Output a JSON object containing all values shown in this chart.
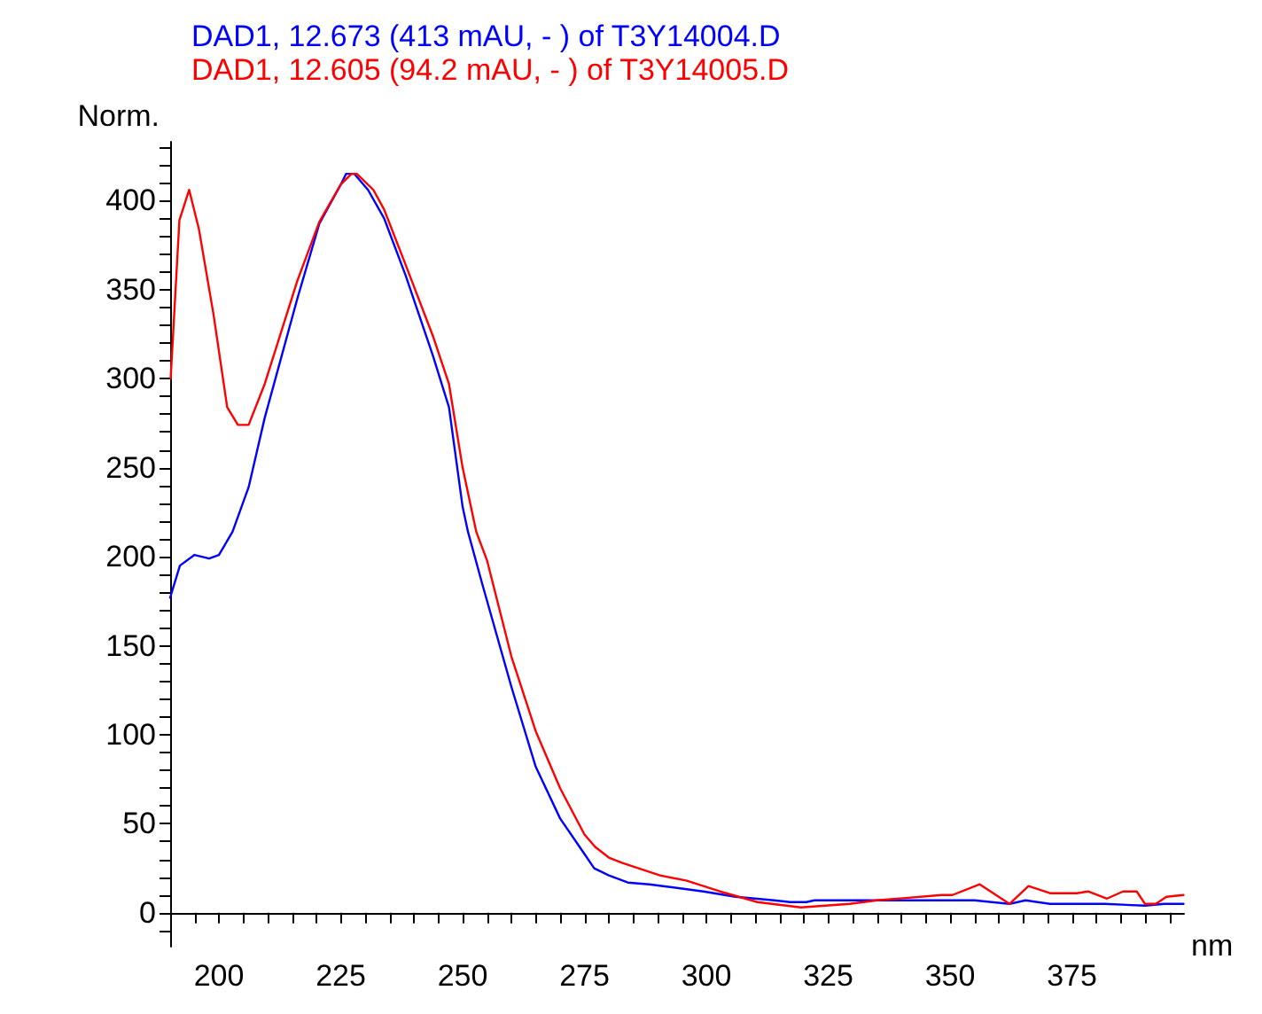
{
  "chart_data": {
    "type": "line",
    "xlabel": "nm",
    "ylabel": "Norm.",
    "legend": "top left",
    "grid": false,
    "marker": "none",
    "line_style": "solid",
    "xlim": [
      190,
      398
    ],
    "ylim": [
      -19,
      433
    ],
    "xticks": [
      {
        "value": 190,
        "label": null
      },
      {
        "value": 195,
        "label": null
      },
      200,
      {
        "value": 205,
        "label": null
      },
      {
        "value": 210,
        "label": null
      },
      {
        "value": 215,
        "label": null
      },
      {
        "value": 220,
        "label": null
      },
      225,
      {
        "value": 230,
        "label": null
      },
      {
        "value": 235,
        "label": null
      },
      {
        "value": 240,
        "label": null
      },
      {
        "value": 245,
        "label": null
      },
      250,
      {
        "value": 255,
        "label": null
      },
      {
        "value": 260,
        "label": null
      },
      {
        "value": 265,
        "label": null
      },
      {
        "value": 270,
        "label": null
      },
      275,
      {
        "value": 280,
        "label": null
      },
      {
        "value": 285,
        "label": null
      },
      {
        "value": 290,
        "label": null
      },
      {
        "value": 295,
        "label": null
      },
      300,
      {
        "value": 305,
        "label": null
      },
      {
        "value": 310,
        "label": null
      },
      {
        "value": 315,
        "label": null
      },
      {
        "value": 320,
        "label": null
      },
      325,
      {
        "value": 330,
        "label": null
      },
      {
        "value": 335,
        "label": null
      },
      {
        "value": 340,
        "label": null
      },
      {
        "value": 345,
        "label": null
      },
      350,
      {
        "value": 355,
        "label": null
      },
      {
        "value": 360,
        "label": null
      },
      {
        "value": 365,
        "label": null
      },
      {
        "value": 370,
        "label": null
      },
      375,
      {
        "value": 380,
        "label": null
      },
      {
        "value": 385,
        "label": null
      },
      {
        "value": 390,
        "label": null
      },
      {
        "value": 395,
        "label": null
      }
    ],
    "yticks": [
      {
        "value": -10,
        "label": null
      },
      0,
      {
        "value": 10,
        "label": null
      },
      {
        "value": 20,
        "label": null
      },
      {
        "value": 30,
        "label": null
      },
      {
        "value": 40,
        "label": null
      },
      50,
      {
        "value": 60,
        "label": null
      },
      {
        "value": 70,
        "label": null
      },
      {
        "value": 80,
        "label": null
      },
      {
        "value": 90,
        "label": null
      },
      100,
      {
        "value": 110,
        "label": null
      },
      {
        "value": 120,
        "label": null
      },
      {
        "value": 130,
        "label": null
      },
      {
        "value": 140,
        "label": null
      },
      150,
      {
        "value": 160,
        "label": null
      },
      {
        "value": 170,
        "label": null
      },
      {
        "value": 180,
        "label": null
      },
      {
        "value": 190,
        "label": null
      },
      200,
      {
        "value": 210,
        "label": null
      },
      {
        "value": 220,
        "label": null
      },
      {
        "value": 230,
        "label": null
      },
      {
        "value": 240,
        "label": null
      },
      250,
      {
        "value": 260,
        "label": null
      },
      {
        "value": 270,
        "label": null
      },
      {
        "value": 280,
        "label": null
      },
      {
        "value": 290,
        "label": null
      },
      300,
      {
        "value": 310,
        "label": null
      },
      {
        "value": 320,
        "label": null
      },
      {
        "value": 330,
        "label": null
      },
      {
        "value": 340,
        "label": null
      },
      350,
      {
        "value": 360,
        "label": null
      },
      {
        "value": 370,
        "label": null
      },
      {
        "value": 380,
        "label": null
      },
      {
        "value": 390,
        "label": null
      },
      400,
      {
        "value": 410,
        "label": null
      },
      {
        "value": 420,
        "label": null
      },
      {
        "value": 430,
        "label": null
      }
    ],
    "series": [
      {
        "name": "DAD1, 12.673 (413 mAU, - ) of T3Y14004.D",
        "color": "#0000ff",
        "x": [
          190,
          192,
          195,
          198,
          200,
          202.8,
          206.1,
          209.4,
          216.1,
          220.6,
          225,
          226.1,
          227.8,
          230.6,
          233.9,
          238.3,
          243.9,
          247.2,
          250,
          251.1,
          254,
          260,
          265,
          270,
          275,
          277,
          280,
          283.9,
          288.3,
          299.4,
          306,
          313.9,
          317.2,
          320.5,
          322.2,
          355,
          362.2,
          365.5,
          370.5,
          381.7,
          390,
          393.9,
          397.9
        ],
        "values": [
          177,
          195,
          201,
          199,
          201,
          214,
          239,
          278,
          345,
          387,
          409,
          415,
          415,
          406,
          390,
          358,
          313,
          284,
          228,
          214,
          185,
          127,
          82,
          53,
          33,
          25,
          21,
          17,
          16,
          12,
          9,
          7,
          6,
          6,
          7,
          7,
          5,
          7,
          5,
          5,
          4,
          5,
          5
        ]
      },
      {
        "name": "DAD1, 12.605 (94.2 mAU, - ) of T3Y14005.D",
        "color": "#ff0000",
        "x": [
          190.1,
          191.9,
          193.9,
          195.9,
          198.9,
          201.7,
          203.9,
          206.1,
          209.4,
          216.1,
          220.6,
          225,
          227.2,
          228.3,
          231.7,
          233.9,
          238.3,
          243.9,
          247.2,
          250,
          252.8,
          255,
          260,
          265,
          270,
          275,
          277.2,
          280,
          282.8,
          290.5,
          296,
          302.8,
          310.5,
          319.4,
          329.4,
          335,
          348.3,
          350.5,
          356.1,
          362.2,
          366.1,
          370.5,
          376,
          378.3,
          382.2,
          385.5,
          388.3,
          390,
          392.2,
          394.4,
          397.9
        ],
        "values": [
          300,
          389,
          406,
          384,
          336,
          284,
          274,
          274,
          297,
          355,
          388,
          409,
          415,
          415,
          406,
          395,
          364,
          324,
          297,
          250,
          214,
          198,
          144,
          102,
          70,
          44,
          37,
          31,
          28,
          21,
          18,
          12,
          6,
          3,
          5,
          7,
          10,
          10,
          16,
          5,
          15,
          11,
          11,
          12,
          8,
          12,
          12,
          5,
          5,
          9,
          10
        ]
      }
    ]
  }
}
